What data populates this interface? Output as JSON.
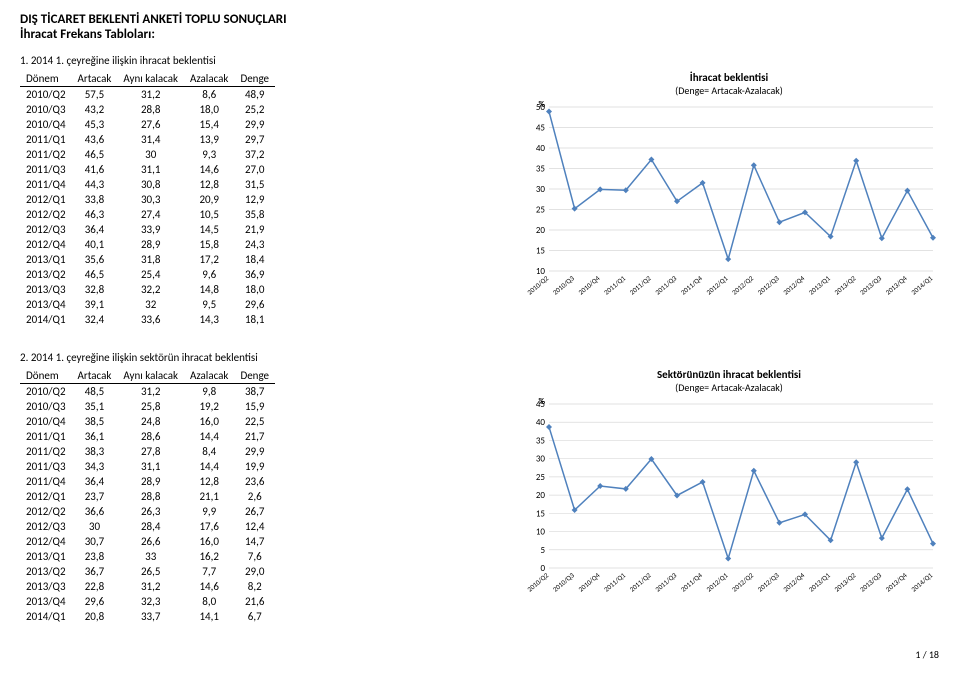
{
  "header": {
    "title": "DIŞ TİCARET BEKLENTİ ANKETİ TOPLU SONUÇLARI",
    "subtitle": "İhracat Frekans Tabloları:"
  },
  "section1": {
    "title": "1. 2014 1. çeyreğine ilişkin ihracat beklentisi",
    "columns": [
      "Dönem",
      "Artacak",
      "Aynı kalacak",
      "Azalacak",
      "Denge"
    ],
    "rows": [
      [
        "2010/Q2",
        "57,5",
        "31,2",
        "8,6",
        "48,9"
      ],
      [
        "2010/Q3",
        "43,2",
        "28,8",
        "18,0",
        "25,2"
      ],
      [
        "2010/Q4",
        "45,3",
        "27,6",
        "15,4",
        "29,9"
      ],
      [
        "2011/Q1",
        "43,6",
        "31,4",
        "13,9",
        "29,7"
      ],
      [
        "2011/Q2",
        "46,5",
        "30",
        "9,3",
        "37,2"
      ],
      [
        "2011/Q3",
        "41,6",
        "31,1",
        "14,6",
        "27,0"
      ],
      [
        "2011/Q4",
        "44,3",
        "30,8",
        "12,8",
        "31,5"
      ],
      [
        "2012/Q1",
        "33,8",
        "30,3",
        "20,9",
        "12,9"
      ],
      [
        "2012/Q2",
        "46,3",
        "27,4",
        "10,5",
        "35,8"
      ],
      [
        "2012/Q3",
        "36,4",
        "33,9",
        "14,5",
        "21,9"
      ],
      [
        "2012/Q4",
        "40,1",
        "28,9",
        "15,8",
        "24,3"
      ],
      [
        "2013/Q1",
        "35,6",
        "31,8",
        "17,2",
        "18,4"
      ],
      [
        "2013/Q2",
        "46,5",
        "25,4",
        "9,6",
        "36,9"
      ],
      [
        "2013/Q3",
        "32,8",
        "32,2",
        "14,8",
        "18,0"
      ],
      [
        "2013/Q4",
        "39,1",
        "32",
        "9,5",
        "29,6"
      ],
      [
        "2014/Q1",
        "32,4",
        "33,6",
        "14,3",
        "18,1"
      ]
    ],
    "chart": {
      "title": "İhracat beklentisi",
      "subtitle": "(Denge= Artacak-Azalacak)",
      "ylabel": "%",
      "yticks": [
        10,
        15,
        20,
        25,
        30,
        35,
        40,
        45,
        50
      ],
      "ylim": [
        10,
        50
      ],
      "xlabels": [
        "2010/Q2",
        "2010/Q3",
        "2010/Q4",
        "2011/Q1",
        "2011/Q2",
        "2011/Q3",
        "2011/Q4",
        "2012/Q1",
        "2012/Q2",
        "2012/Q3",
        "2012/Q4",
        "2013/Q1",
        "2013/Q2",
        "2013/Q3",
        "2013/Q4",
        "2014/Q1"
      ],
      "values": [
        48.9,
        25.2,
        29.9,
        29.7,
        37.2,
        27.0,
        31.5,
        12.9,
        35.8,
        21.9,
        24.3,
        18.4,
        36.9,
        18.0,
        29.6,
        18.1
      ],
      "line_color": "#4f81bd",
      "marker_color": "#4f81bd",
      "grid_color": "#d9d9d9",
      "background_color": "#ffffff"
    }
  },
  "section2": {
    "title": "2. 2014 1. çeyreğine ilişkin sektörün ihracat beklentisi",
    "columns": [
      "Dönem",
      "Artacak",
      "Aynı kalacak",
      "Azalacak",
      "Denge"
    ],
    "rows": [
      [
        "2010/Q2",
        "48,5",
        "31,2",
        "9,8",
        "38,7"
      ],
      [
        "2010/Q3",
        "35,1",
        "25,8",
        "19,2",
        "15,9"
      ],
      [
        "2010/Q4",
        "38,5",
        "24,8",
        "16,0",
        "22,5"
      ],
      [
        "2011/Q1",
        "36,1",
        "28,6",
        "14,4",
        "21,7"
      ],
      [
        "2011/Q2",
        "38,3",
        "27,8",
        "8,4",
        "29,9"
      ],
      [
        "2011/Q3",
        "34,3",
        "31,1",
        "14,4",
        "19,9"
      ],
      [
        "2011/Q4",
        "36,4",
        "28,9",
        "12,8",
        "23,6"
      ],
      [
        "2012/Q1",
        "23,7",
        "28,8",
        "21,1",
        "2,6"
      ],
      [
        "2012/Q2",
        "36,6",
        "26,3",
        "9,9",
        "26,7"
      ],
      [
        "2012/Q3",
        "30",
        "28,4",
        "17,6",
        "12,4"
      ],
      [
        "2012/Q4",
        "30,7",
        "26,6",
        "16,0",
        "14,7"
      ],
      [
        "2013/Q1",
        "23,8",
        "33",
        "16,2",
        "7,6"
      ],
      [
        "2013/Q2",
        "36,7",
        "26,5",
        "7,7",
        "29,0"
      ],
      [
        "2013/Q3",
        "22,8",
        "31,2",
        "14,6",
        "8,2"
      ],
      [
        "2013/Q4",
        "29,6",
        "32,3",
        "8,0",
        "21,6"
      ],
      [
        "2014/Q1",
        "20,8",
        "33,7",
        "14,1",
        "6,7"
      ]
    ],
    "chart": {
      "title": "Sektörünüzün ihracat beklentisi",
      "subtitle": "(Denge= Artacak-Azalacak)",
      "ylabel": "%",
      "yticks": [
        0,
        5,
        10,
        15,
        20,
        25,
        30,
        35,
        40,
        45
      ],
      "ylim": [
        0,
        45
      ],
      "xlabels": [
        "2010/Q2",
        "2010/Q3",
        "2010/Q4",
        "2011/Q1",
        "2011/Q2",
        "2011/Q3",
        "2011/Q4",
        "2012/Q1",
        "2012/Q2",
        "2012/Q3",
        "2012/Q4",
        "2013/Q1",
        "2013/Q2",
        "2013/Q3",
        "2013/Q4",
        "2014/Q1"
      ],
      "values": [
        38.7,
        15.9,
        22.5,
        21.7,
        29.9,
        19.9,
        23.6,
        2.6,
        26.7,
        12.4,
        14.7,
        7.6,
        29.0,
        8.2,
        21.6,
        6.7
      ],
      "line_color": "#4f81bd",
      "marker_color": "#4f81bd",
      "grid_color": "#d9d9d9",
      "background_color": "#ffffff"
    }
  },
  "footer": "1 / 18"
}
